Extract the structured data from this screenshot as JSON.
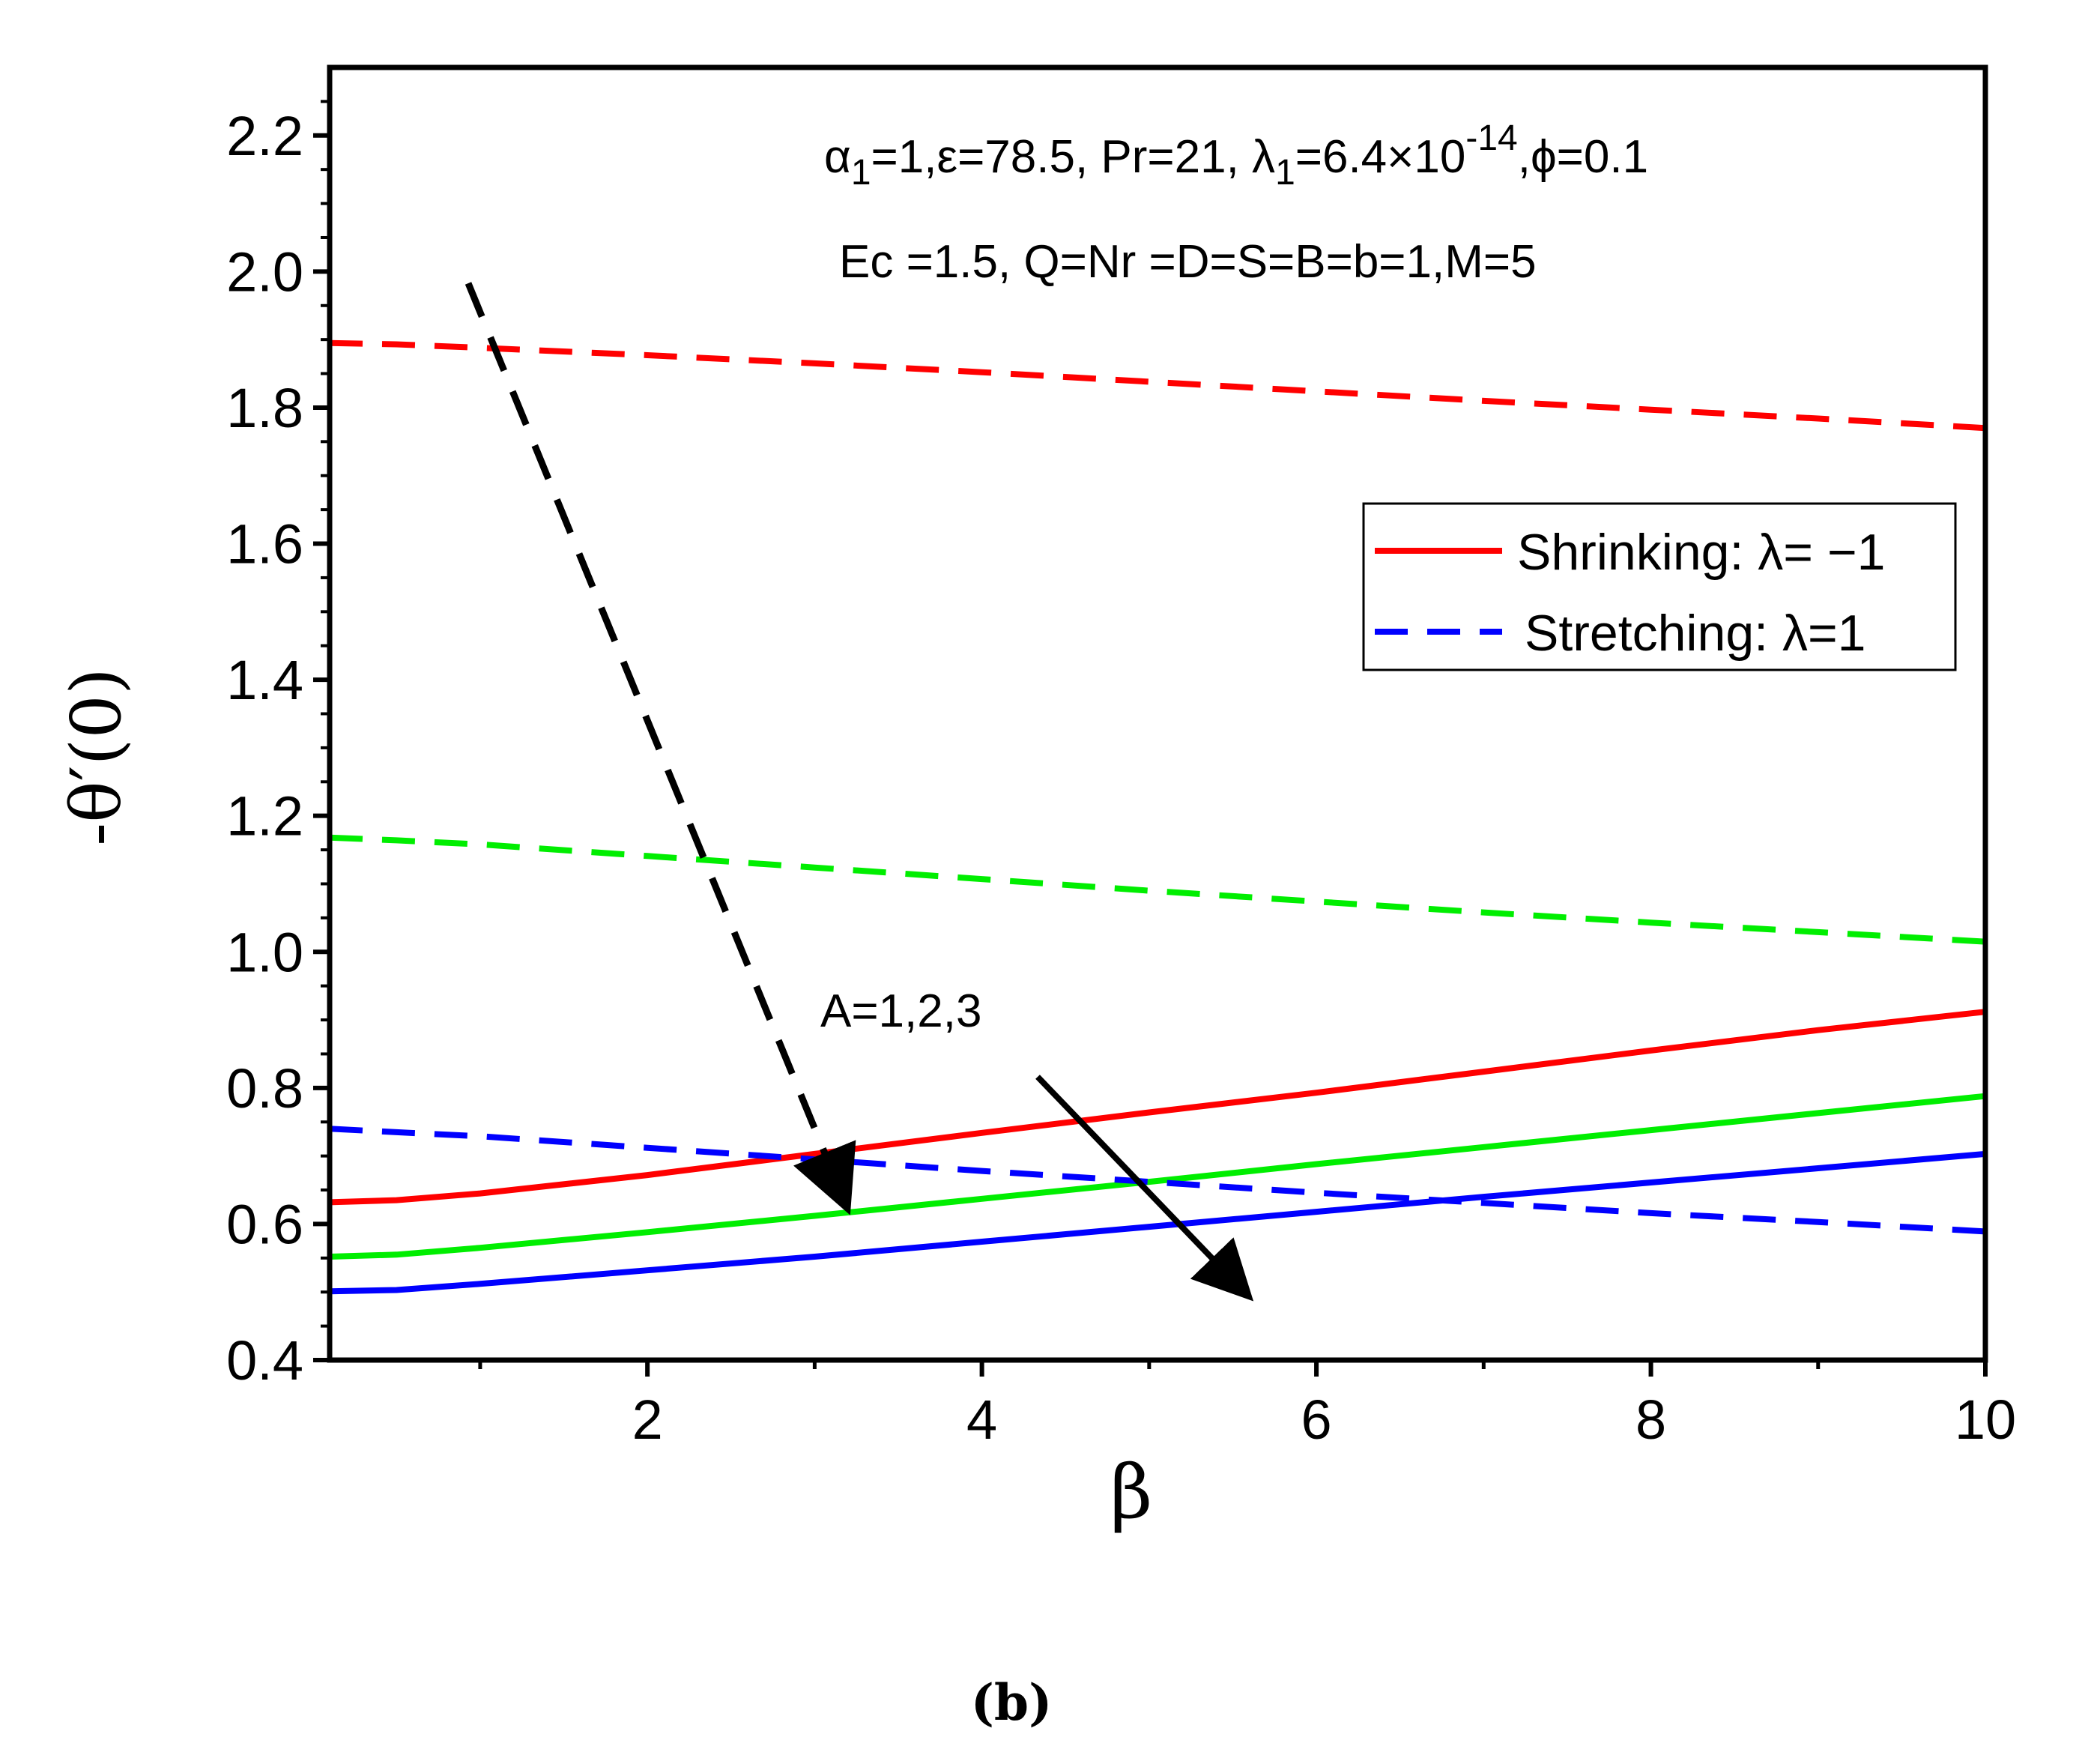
{
  "chart_data": {
    "type": "line",
    "title": "",
    "xlabel": "β",
    "ylabel": "-θ′(0)",
    "xlim": [
      0.1,
      10
    ],
    "ylim": [
      0.4,
      2.3
    ],
    "x_ticks": [
      {
        "value": 2,
        "label": "2"
      },
      {
        "value": 4,
        "label": "4"
      },
      {
        "value": 6,
        "label": "6"
      },
      {
        "value": 8,
        "label": "8"
      },
      {
        "value": 10,
        "label": "10"
      }
    ],
    "y_ticks": [
      {
        "value": 0.4,
        "label": "0.4"
      },
      {
        "value": 0.6,
        "label": "0.6"
      },
      {
        "value": 0.8,
        "label": "0.8"
      },
      {
        "value": 1.0,
        "label": "1.0"
      },
      {
        "value": 1.2,
        "label": "1.2"
      },
      {
        "value": 1.4,
        "label": "1.4"
      },
      {
        "value": 1.6,
        "label": "1.6"
      },
      {
        "value": 1.8,
        "label": "1.8"
      },
      {
        "value": 2.0,
        "label": "2.0"
      },
      {
        "value": 2.2,
        "label": "2.2"
      }
    ],
    "x": [
      0.1,
      0.5,
      1,
      2,
      3,
      4,
      5,
      6,
      7,
      8,
      9,
      10
    ],
    "series": [
      {
        "name": "Shrinking A=1",
        "color": "#ff0000",
        "style": "solid",
        "values": [
          0.632,
          0.635,
          0.645,
          0.672,
          0.703,
          0.734,
          0.764,
          0.793,
          0.824,
          0.855,
          0.885,
          0.912
        ]
      },
      {
        "name": "Shrinking A=2",
        "color": "#00ee00",
        "style": "solid",
        "values": [
          0.552,
          0.555,
          0.565,
          0.588,
          0.612,
          0.637,
          0.662,
          0.688,
          0.713,
          0.738,
          0.763,
          0.788
        ]
      },
      {
        "name": "Shrinking A=3",
        "color": "#0000ff",
        "style": "solid",
        "values": [
          0.501,
          0.503,
          0.512,
          0.532,
          0.552,
          0.574,
          0.596,
          0.618,
          0.64,
          0.661,
          0.682,
          0.703
        ]
      },
      {
        "name": "Stretching A=1",
        "color": "#ff0000",
        "style": "dashed",
        "values": [
          1.895,
          1.893,
          1.888,
          1.877,
          1.865,
          1.852,
          1.838,
          1.824,
          1.81,
          1.797,
          1.784,
          1.77
        ]
      },
      {
        "name": "Stretching A=2",
        "color": "#00ee00",
        "style": "dashed",
        "values": [
          1.168,
          1.164,
          1.158,
          1.141,
          1.124,
          1.107,
          1.09,
          1.074,
          1.058,
          1.043,
          1.029,
          1.015
        ]
      },
      {
        "name": "Stretching A=3",
        "color": "#0000ff",
        "style": "dashed",
        "values": [
          0.74,
          0.735,
          0.729,
          0.712,
          0.695,
          0.678,
          0.662,
          0.646,
          0.631,
          0.616,
          0.603,
          0.589
        ]
      }
    ],
    "legend": {
      "position": "right",
      "entries": [
        {
          "label": "Shrinking: λ= −1",
          "color": "#ff0000",
          "style": "solid"
        },
        {
          "label": "Stretching: λ=1",
          "color": "#0000ff",
          "style": "dashed"
        }
      ]
    },
    "annotations": {
      "params_line1": {
        "alpha": "α",
        "alpha_sub": "1",
        "part1": "=1,ε=78.5, Pr=21, λ",
        "lambda_sub": "1",
        "part2": "=6.4×10",
        "exp": "-14",
        "part3": ",ϕ=0.1"
      },
      "params_line2": "Ec =1.5, Q=Nr =D=S=B=b=1,M=5",
      "arrow_label": "A=1,2,3"
    },
    "caption": "(b)",
    "colors": {
      "axis": "#000000",
      "background": "#ffffff"
    }
  }
}
